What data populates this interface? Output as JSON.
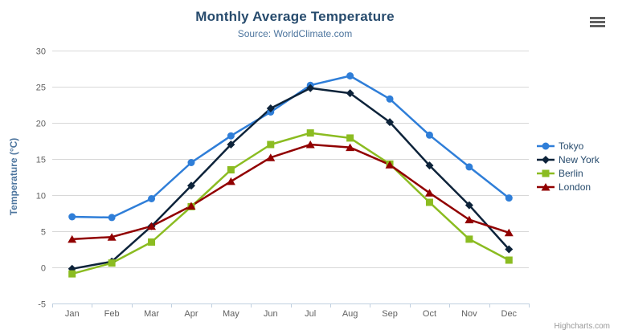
{
  "chart": {
    "title": "Monthly Average Temperature",
    "subtitle": "Source: WorldClimate.com",
    "credits": "Highcharts.com"
  },
  "icons": {
    "context_menu": "hamburger-menu"
  },
  "colors": {
    "title": "#274b6d",
    "subtitle": "#4d759e",
    "axis_title": "#4d759e",
    "axis_labels": "#606060",
    "gridline": "#d8d8d8",
    "axis_line": "#c0d0e0",
    "legend_text": "#274b6d",
    "credits_text": "#999999",
    "menu_icon": "#606060"
  },
  "chart_data": {
    "type": "line",
    "title": "Monthly Average Temperature",
    "subtitle": "Source: WorldClimate.com",
    "categories": [
      "Jan",
      "Feb",
      "Mar",
      "Apr",
      "May",
      "Jun",
      "Jul",
      "Aug",
      "Sep",
      "Oct",
      "Nov",
      "Dec"
    ],
    "series": [
      {
        "name": "Tokyo",
        "color": "#2f7ed8",
        "marker": "circle",
        "values": [
          7.0,
          6.9,
          9.5,
          14.5,
          18.2,
          21.5,
          25.2,
          26.5,
          23.3,
          18.3,
          13.9,
          9.6
        ]
      },
      {
        "name": "New York",
        "color": "#0d233a",
        "marker": "diamond",
        "values": [
          -0.2,
          0.8,
          5.7,
          11.3,
          17.0,
          22.0,
          24.8,
          24.1,
          20.1,
          14.1,
          8.6,
          2.5
        ]
      },
      {
        "name": "Berlin",
        "color": "#8bbc21",
        "marker": "square",
        "values": [
          -0.9,
          0.6,
          3.5,
          8.4,
          13.5,
          17.0,
          18.6,
          17.9,
          14.3,
          9.0,
          3.9,
          1.0
        ]
      },
      {
        "name": "London",
        "color": "#910000",
        "marker": "triangle",
        "values": [
          3.9,
          4.2,
          5.7,
          8.5,
          11.9,
          15.2,
          17.0,
          16.6,
          14.2,
          10.3,
          6.6,
          4.8
        ]
      }
    ],
    "xlabel": "",
    "ylabel": "Temperature (°C)",
    "ylim": [
      -5,
      30
    ],
    "ytick_interval": 5,
    "grid": true,
    "legend_position": "right"
  }
}
